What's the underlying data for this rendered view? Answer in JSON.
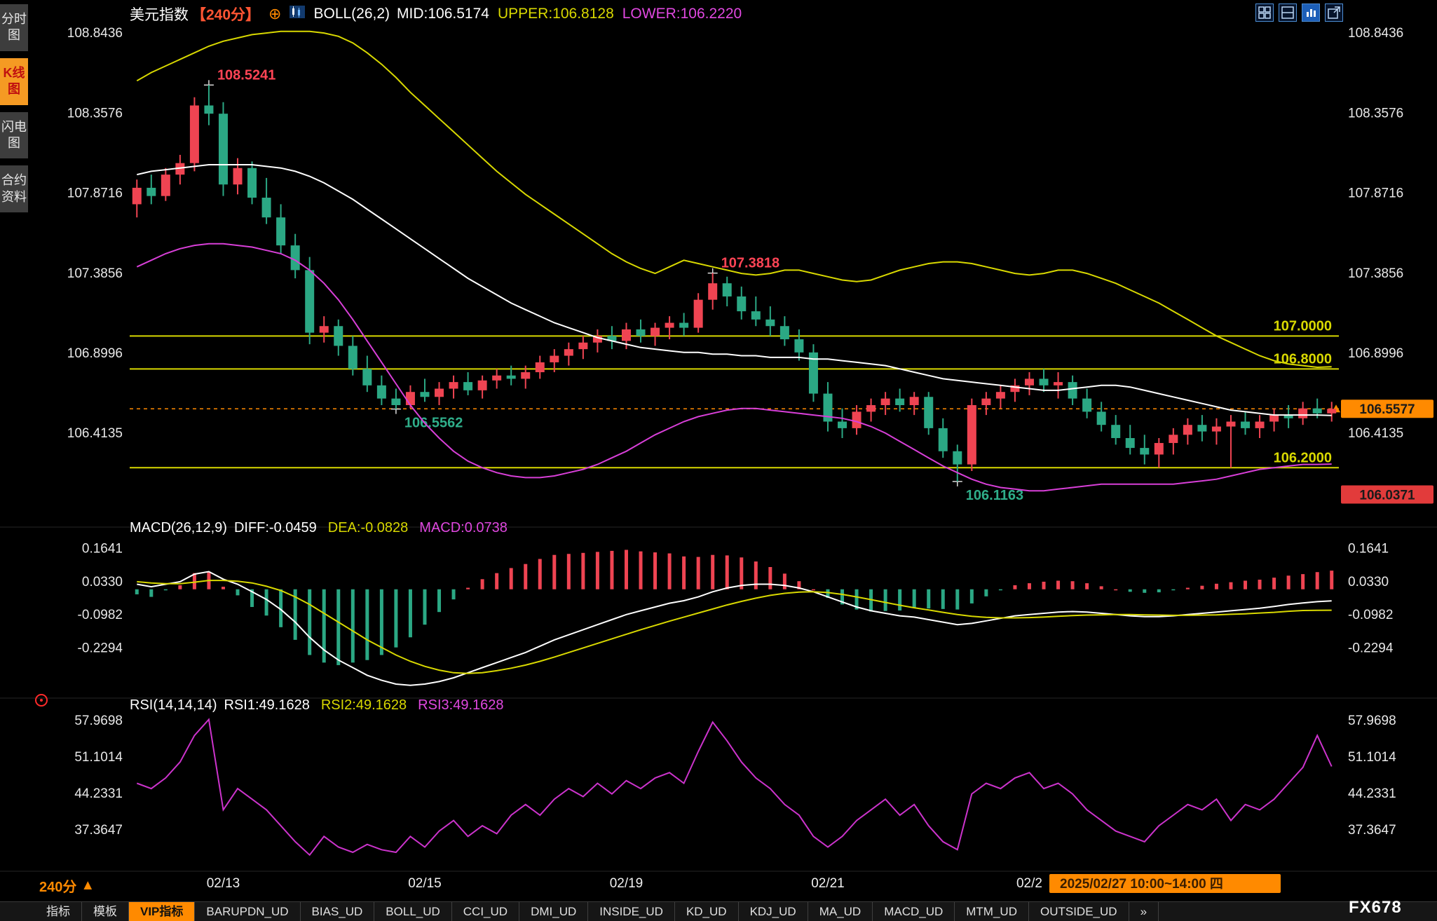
{
  "header": {
    "symbol": "美元指数",
    "period": "【240分】",
    "boll": "BOLL(26,2)",
    "mid": "MID:106.5174",
    "upper": "UPPER:106.8128",
    "lower": "LOWER:106.2220"
  },
  "sidebar": {
    "items": [
      {
        "label": "分时图",
        "active": false
      },
      {
        "label": "K线图",
        "active": true
      },
      {
        "label": "闪电图",
        "active": false
      },
      {
        "label": "合约资料",
        "active": false
      }
    ]
  },
  "macd_header": {
    "title": "MACD(26,12,9)",
    "diff": "DIFF:-0.0459",
    "dea": "DEA:-0.0828",
    "macd": "MACD:0.0738"
  },
  "rsi_header": {
    "title": "RSI(14,14,14)",
    "rsi1": "RSI1:49.1628",
    "rsi2": "RSI2:49.1628",
    "rsi3": "RSI3:49.1628"
  },
  "footer": {
    "period": "240分",
    "period_arrow": "▲",
    "session": "2025/02/27 10:00~14:00",
    "weekday": "四",
    "brand": "FX678"
  },
  "toolbar": {
    "items": [
      {
        "label": "指标",
        "active": false
      },
      {
        "label": "模板",
        "active": false
      },
      {
        "label": "VIP指标",
        "active": true
      },
      {
        "label": "BARUPDN_UD",
        "active": false
      },
      {
        "label": "BIAS_UD",
        "active": false
      },
      {
        "label": "BOLL_UD",
        "active": false
      },
      {
        "label": "CCI_UD",
        "active": false
      },
      {
        "label": "DMI_UD",
        "active": false
      },
      {
        "label": "INSIDE_UD",
        "active": false
      },
      {
        "label": "KD_UD",
        "active": false
      },
      {
        "label": "KDJ_UD",
        "active": false
      },
      {
        "label": "MA_UD",
        "active": false
      },
      {
        "label": "MACD_UD",
        "active": false
      },
      {
        "label": "MTM_UD",
        "active": false
      },
      {
        "label": "OUTSIDE_UD",
        "active": false
      },
      {
        "label": "»",
        "active": false
      }
    ]
  },
  "colors": {
    "up": "#ef4452",
    "down": "#2ba884",
    "yellow": "#d8d800",
    "white": "#ffffff",
    "magenta": "#d83fd8",
    "rsi": "#cc33cc",
    "accent": "#ff8a00",
    "axis_text": "#e8e8e8",
    "low_box": "#e23b3b"
  },
  "chart_data": {
    "type": "candlestick",
    "main": {
      "y_ticks": [
        108.8436,
        108.3576,
        107.8716,
        107.3856,
        106.8996,
        106.4135
      ],
      "range": [
        105.95,
        108.9
      ],
      "hlines": [
        {
          "value": 107.0,
          "label": "107.0000"
        },
        {
          "value": 106.8,
          "label": "106.8000"
        },
        {
          "value": 106.2,
          "label": "106.2000"
        }
      ],
      "current_price": {
        "value": 106.5577,
        "label": "106.5577"
      },
      "low_box": {
        "value": 106.0371,
        "label": "106.0371"
      },
      "annotations": [
        {
          "index": 5,
          "price": 108.5241,
          "label": "108.5241",
          "pos": "high",
          "color": "#ff4455"
        },
        {
          "index": 40,
          "price": 107.3818,
          "label": "107.3818",
          "pos": "high",
          "color": "#ff4455"
        },
        {
          "index": 18,
          "price": 106.5562,
          "label": "106.5562",
          "pos": "low",
          "color": "#2fae8a"
        },
        {
          "index": 57,
          "price": 106.1163,
          "label": "106.1163",
          "pos": "low",
          "color": "#2fae8a"
        }
      ],
      "candles": [
        [
          107.8,
          107.95,
          107.72,
          107.9
        ],
        [
          107.9,
          107.98,
          107.8,
          107.85
        ],
        [
          107.85,
          108.02,
          107.82,
          107.98
        ],
        [
          107.98,
          108.1,
          107.92,
          108.05
        ],
        [
          108.05,
          108.45,
          108.0,
          108.4
        ],
        [
          108.4,
          108.5241,
          108.28,
          108.35
        ],
        [
          108.35,
          108.42,
          107.85,
          107.92
        ],
        [
          107.92,
          108.08,
          107.86,
          108.02
        ],
        [
          108.02,
          108.06,
          107.8,
          107.84
        ],
        [
          107.84,
          107.96,
          107.68,
          107.72
        ],
        [
          107.72,
          107.8,
          107.5,
          107.55
        ],
        [
          107.55,
          107.62,
          107.35,
          107.4
        ],
        [
          107.4,
          107.48,
          106.95,
          107.02
        ],
        [
          107.02,
          107.12,
          106.96,
          107.06
        ],
        [
          107.06,
          107.1,
          106.88,
          106.94
        ],
        [
          106.94,
          107.0,
          106.76,
          106.8
        ],
        [
          106.8,
          106.88,
          106.66,
          106.7
        ],
        [
          106.7,
          106.76,
          106.58,
          106.62
        ],
        [
          106.62,
          106.68,
          106.5562,
          106.58
        ],
        [
          106.58,
          106.7,
          106.56,
          106.66
        ],
        [
          106.66,
          106.74,
          106.6,
          106.63
        ],
        [
          106.63,
          106.72,
          106.58,
          106.68
        ],
        [
          106.68,
          106.76,
          106.62,
          106.72
        ],
        [
          106.72,
          106.78,
          106.64,
          106.67
        ],
        [
          106.67,
          106.76,
          106.62,
          106.73
        ],
        [
          106.73,
          106.8,
          106.68,
          106.76
        ],
        [
          106.76,
          106.82,
          106.7,
          106.74
        ],
        [
          106.74,
          106.82,
          106.68,
          106.78
        ],
        [
          106.78,
          106.88,
          106.74,
          106.84
        ],
        [
          106.84,
          106.92,
          106.78,
          106.88
        ],
        [
          106.88,
          106.96,
          106.82,
          106.92
        ],
        [
          106.92,
          107.0,
          106.86,
          106.96
        ],
        [
          106.96,
          107.04,
          106.9,
          107.0
        ],
        [
          107.0,
          107.06,
          106.92,
          106.97
        ],
        [
          106.97,
          107.08,
          106.92,
          107.04
        ],
        [
          107.04,
          107.1,
          106.96,
          107.0
        ],
        [
          107.0,
          107.08,
          106.94,
          107.05
        ],
        [
          107.05,
          107.12,
          106.98,
          107.08
        ],
        [
          107.08,
          107.14,
          107.0,
          107.05
        ],
        [
          107.05,
          107.26,
          107.02,
          107.22
        ],
        [
          107.22,
          107.3818,
          107.16,
          107.32
        ],
        [
          107.32,
          107.36,
          107.18,
          107.24
        ],
        [
          107.24,
          107.3,
          107.1,
          107.15
        ],
        [
          107.15,
          107.24,
          107.06,
          107.1
        ],
        [
          107.1,
          107.18,
          107.0,
          107.06
        ],
        [
          107.06,
          107.12,
          106.94,
          106.98
        ],
        [
          106.98,
          107.04,
          106.85,
          106.9
        ],
        [
          106.9,
          106.95,
          106.6,
          106.65
        ],
        [
          106.65,
          106.72,
          106.42,
          106.48
        ],
        [
          106.48,
          106.56,
          106.38,
          106.44
        ],
        [
          106.44,
          106.58,
          106.4,
          106.54
        ],
        [
          106.54,
          106.62,
          106.48,
          106.58
        ],
        [
          106.58,
          106.66,
          106.52,
          106.62
        ],
        [
          106.62,
          106.68,
          106.54,
          106.58
        ],
        [
          106.58,
          106.66,
          106.52,
          106.63
        ],
        [
          106.63,
          106.66,
          106.4,
          106.44
        ],
        [
          106.44,
          106.5,
          106.26,
          106.3
        ],
        [
          106.3,
          106.34,
          106.1163,
          106.22
        ],
        [
          106.22,
          106.62,
          106.18,
          106.58
        ],
        [
          106.58,
          106.66,
          106.52,
          106.62
        ],
        [
          106.62,
          106.7,
          106.56,
          106.66
        ],
        [
          106.66,
          106.74,
          106.6,
          106.7
        ],
        [
          106.7,
          106.78,
          106.64,
          106.74
        ],
        [
          106.74,
          106.8,
          106.66,
          106.7
        ],
        [
          106.7,
          106.78,
          106.62,
          106.72
        ],
        [
          106.72,
          106.76,
          106.58,
          106.62
        ],
        [
          106.62,
          106.68,
          106.5,
          106.54
        ],
        [
          106.54,
          106.6,
          106.42,
          106.46
        ],
        [
          106.46,
          106.52,
          106.34,
          106.38
        ],
        [
          106.38,
          106.46,
          106.28,
          106.32
        ],
        [
          106.32,
          106.4,
          106.22,
          106.28
        ],
        [
          106.28,
          106.38,
          106.2,
          106.35
        ],
        [
          106.35,
          106.44,
          106.28,
          106.4
        ],
        [
          106.4,
          106.5,
          106.34,
          106.46
        ],
        [
          106.46,
          106.52,
          106.36,
          106.42
        ],
        [
          106.42,
          106.5,
          106.34,
          106.45
        ],
        [
          106.45,
          106.52,
          106.2,
          106.48
        ],
        [
          106.48,
          106.54,
          106.4,
          106.44
        ],
        [
          106.44,
          106.52,
          106.38,
          106.48
        ],
        [
          106.48,
          106.56,
          106.42,
          106.52
        ],
        [
          106.52,
          106.58,
          106.44,
          106.5
        ],
        [
          106.5,
          106.6,
          106.46,
          106.56
        ],
        [
          106.56,
          106.62,
          106.5,
          106.53
        ],
        [
          106.53,
          106.6,
          106.48,
          106.5577
        ]
      ],
      "boll_upper": [
        108.55,
        108.6,
        108.64,
        108.68,
        108.72,
        108.76,
        108.79,
        108.81,
        108.83,
        108.84,
        108.85,
        108.85,
        108.85,
        108.84,
        108.82,
        108.78,
        108.72,
        108.65,
        108.57,
        108.48,
        108.4,
        108.32,
        108.24,
        108.16,
        108.08,
        108.0,
        107.93,
        107.86,
        107.8,
        107.74,
        107.68,
        107.62,
        107.56,
        107.5,
        107.45,
        107.41,
        107.38,
        107.42,
        107.46,
        107.44,
        107.42,
        107.4,
        107.38,
        107.37,
        107.38,
        107.4,
        107.4,
        107.38,
        107.36,
        107.34,
        107.33,
        107.34,
        107.37,
        107.4,
        107.42,
        107.44,
        107.45,
        107.45,
        107.44,
        107.42,
        107.4,
        107.38,
        107.37,
        107.38,
        107.4,
        107.4,
        107.38,
        107.35,
        107.32,
        107.28,
        107.24,
        107.2,
        107.15,
        107.1,
        107.05,
        107.0,
        106.96,
        106.92,
        106.88,
        106.85,
        106.83,
        106.82,
        106.81,
        106.8128
      ],
      "boll_mid": [
        107.98,
        108.0,
        108.01,
        108.02,
        108.03,
        108.04,
        108.04,
        108.04,
        108.04,
        108.03,
        108.02,
        108.0,
        107.97,
        107.93,
        107.88,
        107.83,
        107.77,
        107.71,
        107.65,
        107.59,
        107.53,
        107.47,
        107.41,
        107.35,
        107.3,
        107.25,
        107.2,
        107.16,
        107.12,
        107.08,
        107.05,
        107.02,
        106.99,
        106.97,
        106.95,
        106.93,
        106.92,
        106.91,
        106.9,
        106.9,
        106.89,
        106.89,
        106.88,
        106.88,
        106.87,
        106.87,
        106.87,
        106.86,
        106.86,
        106.85,
        106.84,
        106.83,
        106.82,
        106.8,
        106.78,
        106.76,
        106.74,
        106.73,
        106.72,
        106.71,
        106.7,
        106.69,
        106.68,
        106.67,
        106.67,
        106.68,
        106.69,
        106.7,
        106.7,
        106.69,
        106.67,
        106.65,
        106.63,
        106.61,
        106.59,
        106.57,
        106.55,
        106.54,
        106.53,
        106.52,
        106.52,
        106.52,
        106.52,
        106.5174
      ],
      "boll_lower": [
        107.42,
        107.46,
        107.5,
        107.53,
        107.55,
        107.56,
        107.56,
        107.55,
        107.54,
        107.52,
        107.5,
        107.46,
        107.4,
        107.32,
        107.22,
        107.1,
        106.97,
        106.84,
        106.71,
        106.58,
        106.47,
        106.38,
        106.3,
        106.24,
        106.2,
        106.17,
        106.15,
        106.14,
        106.14,
        106.15,
        106.17,
        106.19,
        106.22,
        106.26,
        106.3,
        106.35,
        106.4,
        106.44,
        106.48,
        106.51,
        106.53,
        106.55,
        106.56,
        106.56,
        106.55,
        106.54,
        106.53,
        106.52,
        106.51,
        106.5,
        106.48,
        106.45,
        106.41,
        106.36,
        106.31,
        106.26,
        106.21,
        106.17,
        106.13,
        106.1,
        106.08,
        106.07,
        106.06,
        106.06,
        106.07,
        106.08,
        106.09,
        106.1,
        106.1,
        106.1,
        106.1,
        106.1,
        106.1,
        106.11,
        106.12,
        106.13,
        106.15,
        106.17,
        106.19,
        106.2,
        106.21,
        106.22,
        106.22,
        106.222
      ]
    },
    "macd": {
      "y_ticks": [
        0.1641,
        0.033,
        -0.0982,
        -0.2294
      ],
      "range": [
        -0.4,
        0.21
      ],
      "diff": [
        0.02,
        0.01,
        0.02,
        0.03,
        0.06,
        0.07,
        0.04,
        0.02,
        -0.01,
        -0.04,
        -0.08,
        -0.13,
        -0.19,
        -0.24,
        -0.28,
        -0.31,
        -0.34,
        -0.36,
        -0.375,
        -0.38,
        -0.375,
        -0.365,
        -0.35,
        -0.33,
        -0.31,
        -0.29,
        -0.27,
        -0.25,
        -0.225,
        -0.2,
        -0.18,
        -0.16,
        -0.14,
        -0.12,
        -0.1,
        -0.085,
        -0.07,
        -0.055,
        -0.045,
        -0.03,
        -0.01,
        0.005,
        0.015,
        0.02,
        0.02,
        0.015,
        0.005,
        -0.01,
        -0.03,
        -0.05,
        -0.07,
        -0.085,
        -0.095,
        -0.105,
        -0.11,
        -0.12,
        -0.13,
        -0.14,
        -0.135,
        -0.125,
        -0.115,
        -0.105,
        -0.1,
        -0.095,
        -0.09,
        -0.088,
        -0.09,
        -0.095,
        -0.1,
        -0.105,
        -0.108,
        -0.108,
        -0.105,
        -0.1,
        -0.095,
        -0.09,
        -0.085,
        -0.08,
        -0.075,
        -0.068,
        -0.06,
        -0.054,
        -0.049,
        -0.0459
      ],
      "dea": [
        0.03,
        0.025,
        0.022,
        0.022,
        0.028,
        0.035,
        0.035,
        0.032,
        0.025,
        0.012,
        -0.005,
        -0.03,
        -0.06,
        -0.095,
        -0.13,
        -0.165,
        -0.2,
        -0.23,
        -0.26,
        -0.285,
        -0.305,
        -0.32,
        -0.33,
        -0.333,
        -0.33,
        -0.322,
        -0.312,
        -0.3,
        -0.285,
        -0.268,
        -0.25,
        -0.232,
        -0.214,
        -0.196,
        -0.178,
        -0.16,
        -0.143,
        -0.126,
        -0.11,
        -0.094,
        -0.078,
        -0.062,
        -0.048,
        -0.035,
        -0.024,
        -0.016,
        -0.011,
        -0.01,
        -0.013,
        -0.02,
        -0.03,
        -0.041,
        -0.052,
        -0.063,
        -0.073,
        -0.082,
        -0.091,
        -0.1,
        -0.107,
        -0.111,
        -0.113,
        -0.113,
        -0.112,
        -0.11,
        -0.107,
        -0.104,
        -0.102,
        -0.101,
        -0.1,
        -0.1,
        -0.101,
        -0.102,
        -0.103,
        -0.103,
        -0.102,
        -0.101,
        -0.099,
        -0.097,
        -0.094,
        -0.091,
        -0.087,
        -0.084,
        -0.083,
        -0.0828
      ]
    },
    "rsi": {
      "y_ticks": [
        57.9698,
        51.1014,
        44.2331,
        37.3647
      ],
      "range": [
        30.5,
        61.5
      ],
      "values": [
        46,
        45,
        47,
        50,
        55,
        58,
        41,
        45,
        43,
        41,
        38,
        35,
        32.5,
        36,
        34,
        33,
        34.5,
        33.5,
        33,
        36,
        34,
        37,
        39,
        36,
        38,
        36.5,
        40,
        42,
        40,
        43,
        45,
        43.5,
        46,
        44,
        46.5,
        45,
        47,
        48,
        46,
        52,
        57.5,
        54,
        50,
        47,
        45,
        42,
        40,
        36,
        34,
        36,
        39,
        41,
        43,
        40,
        42,
        38,
        35,
        33.5,
        44,
        46,
        45,
        47,
        48,
        45,
        46,
        44,
        41,
        39,
        37,
        36,
        35,
        38,
        40,
        42,
        41,
        43,
        39,
        42,
        41,
        43,
        46,
        49,
        55,
        49.1628
      ]
    },
    "dates": [
      {
        "label": "02/13",
        "index": 6
      },
      {
        "label": "02/15",
        "index": 20
      },
      {
        "label": "02/19",
        "index": 34
      },
      {
        "label": "02/21",
        "index": 48
      },
      {
        "label": "02/2",
        "index": 62
      }
    ]
  }
}
